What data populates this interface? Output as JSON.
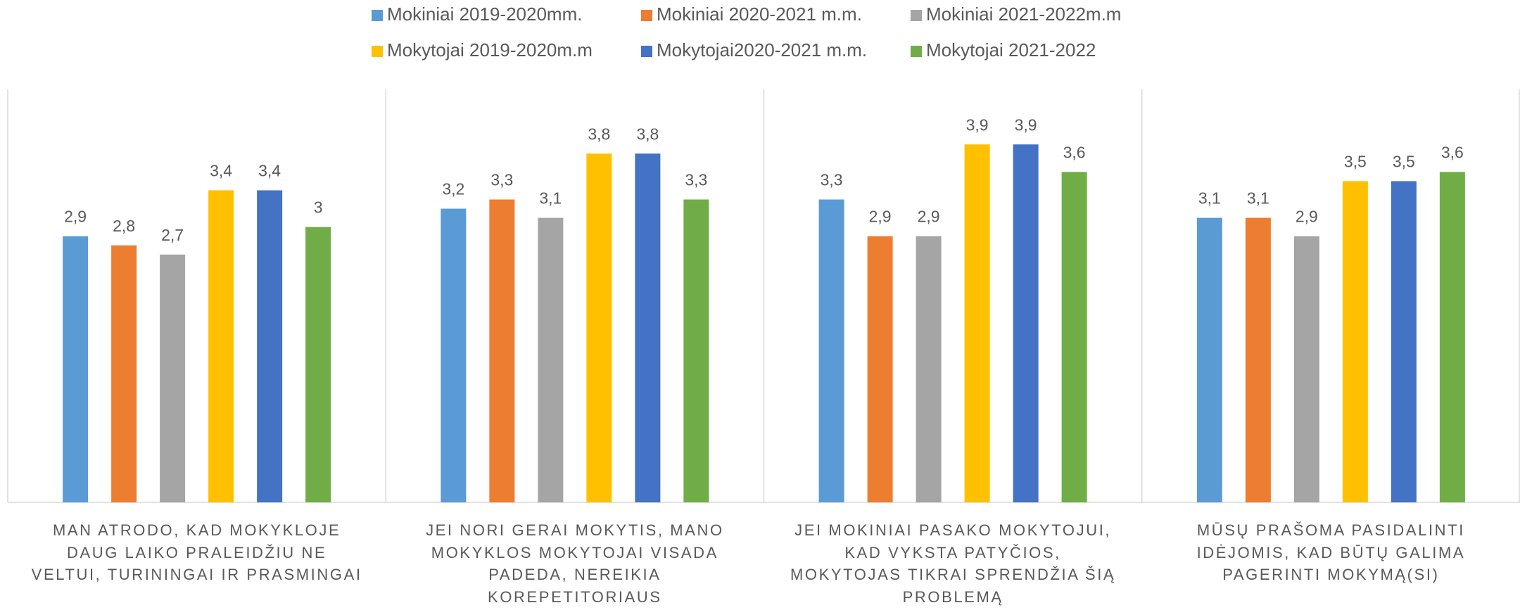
{
  "chart_data": {
    "type": "bar",
    "categories": [
      "MAN ATRODO, KAD MOKYKLOJE DAUG LAIKO PRALEIDŽIU NE VELTUI, TURININGAI IR PRASMINGAI",
      "JEI NORI GERAI MOKYTIS, MANO MOKYKLOS MOKYTOJAI VISADA PADEDA, NEREIKIA KOREPETITORIAUS",
      "JEI MOKINIAI PASAKO MOKYTOJUI, KAD VYKSTA PATYČIOS, MOKYTOJAS TIKRAI SPRENDŽIA ŠIĄ PROBLEMĄ",
      "MŪSŲ PRAŠOMA PASIDALINTI IDĖJOMIS, KAD BŪTŲ GALIMA PAGERINTI MOKYMĄ(SI)"
    ],
    "series": [
      {
        "name": "Mokiniai 2019-2020mm.",
        "color": "#5b9bd5",
        "values": [
          2.9,
          3.2,
          3.3,
          3.1
        ],
        "value_labels": [
          "2,9",
          "3,2",
          "3,3",
          "3,1"
        ]
      },
      {
        "name": "Mokiniai 2020-2021 m.m.",
        "color": "#ed7d31",
        "values": [
          2.8,
          3.3,
          2.9,
          3.1
        ],
        "value_labels": [
          "2,8",
          "3,3",
          "2,9",
          "3,1"
        ]
      },
      {
        "name": "Mokiniai 2021-2022m.m",
        "color": "#a5a5a5",
        "values": [
          2.7,
          3.1,
          2.9,
          2.9
        ],
        "value_labels": [
          "2,7",
          "3,1",
          "2,9",
          "2,9"
        ]
      },
      {
        "name": "Mokytojai 2019-2020m.m",
        "color": "#ffc000",
        "values": [
          3.4,
          3.8,
          3.9,
          3.5
        ],
        "value_labels": [
          "3,4",
          "3,8",
          "3,9",
          "3,5"
        ]
      },
      {
        "name": "Mokytojai2020-2021 m.m.",
        "color": "#4472c4",
        "values": [
          3.4,
          3.8,
          3.9,
          3.5
        ],
        "value_labels": [
          "3,4",
          "3,8",
          "3,9",
          "3,5"
        ]
      },
      {
        "name": "Mokytojai 2021-2022",
        "color": "#70ad47",
        "values": [
          3,
          3.3,
          3.6,
          3.6
        ],
        "value_labels": [
          "3",
          "3,3",
          "3,6",
          "3,6"
        ]
      }
    ],
    "ylim": [
      0,
      4.5
    ],
    "legend": "top"
  }
}
